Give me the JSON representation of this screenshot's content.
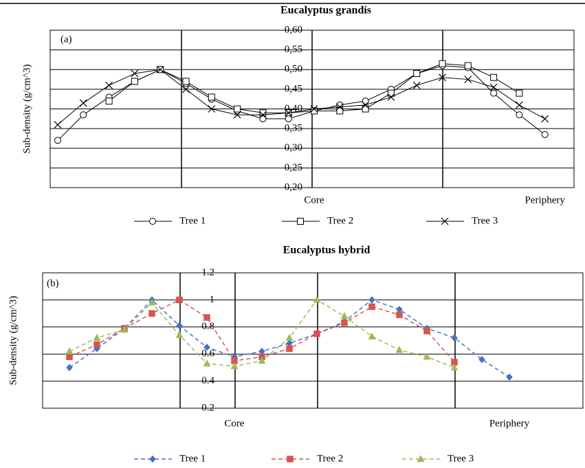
{
  "chart_data": [
    {
      "type": "line",
      "title": "Eucalyptus grandis",
      "annotation": "(a)",
      "y_label": "Sub-density (g/cm^3)",
      "categories": [
        null,
        null,
        null,
        null,
        null,
        null,
        null,
        null,
        null,
        null,
        "Core",
        null,
        null,
        null,
        null,
        null,
        null,
        null,
        null,
        "Periphery"
      ],
      "ylim": [
        0.2,
        0.6
      ],
      "yticks": [
        {
          "value": 0.2,
          "label": "0,20"
        },
        {
          "value": 0.25,
          "label": "0,25"
        },
        {
          "value": 0.3,
          "label": "0,30"
        },
        {
          "value": 0.35,
          "label": "0,35"
        },
        {
          "value": 0.4,
          "label": "0,40"
        },
        {
          "value": 0.45,
          "label": "0,45"
        },
        {
          "value": 0.5,
          "label": "0,50"
        },
        {
          "value": 0.55,
          "label": "0,55"
        },
        {
          "value": 0.6,
          "label": "0,60"
        }
      ],
      "grid": true,
      "linestyle": "solid",
      "series": [
        {
          "name": "Tree 1",
          "color": "#000000",
          "marker": "circle",
          "values": [
            0.32,
            0.385,
            0.43,
            0.47,
            0.5,
            0.465,
            0.425,
            0.395,
            0.375,
            0.375,
            0.395,
            0.41,
            0.42,
            0.45,
            0.49,
            0.51,
            0.505,
            0.44,
            0.385,
            0.335
          ]
        },
        {
          "name": "Tree 2",
          "color": "#000000",
          "marker": "square",
          "values": [
            null,
            null,
            0.42,
            0.47,
            0.5,
            0.47,
            0.43,
            0.4,
            0.39,
            0.39,
            0.395,
            0.395,
            0.4,
            0.44,
            0.49,
            0.515,
            0.51,
            0.48,
            0.44,
            null
          ]
        },
        {
          "name": "Tree 3",
          "color": "#000000",
          "marker": "x",
          "values": [
            0.36,
            0.415,
            0.46,
            0.49,
            0.5,
            0.45,
            0.4,
            0.385,
            0.385,
            0.39,
            0.4,
            0.405,
            0.41,
            0.43,
            0.46,
            0.48,
            0.475,
            0.455,
            0.41,
            0.375
          ]
        }
      ]
    },
    {
      "type": "line",
      "title": "Eucalyptus hybrid",
      "annotation": "(b)",
      "y_label": "Sub-density (g/cm^3)",
      "categories": [
        null,
        null,
        null,
        null,
        null,
        null,
        "Core",
        null,
        null,
        null,
        null,
        null,
        null,
        null,
        null,
        null,
        "Periphery"
      ],
      "ylim": [
        0.2,
        1.2
      ],
      "yticks": [
        0.2,
        0.4,
        0.6,
        0.8,
        1,
        1.2
      ],
      "grid": true,
      "linestyle": "dashed",
      "series": [
        {
          "name": "Tree 1",
          "color": "#4472c4",
          "marker": "diamond",
          "values": [
            0.5,
            0.64,
            0.79,
            1.0,
            0.81,
            0.65,
            0.58,
            0.62,
            0.68,
            0.75,
            0.84,
            1.0,
            0.93,
            0.79,
            0.72,
            0.56,
            0.43
          ]
        },
        {
          "name": "Tree 2",
          "color": "#d9534f",
          "marker": "square",
          "values": [
            0.58,
            0.67,
            0.79,
            0.9,
            1.0,
            0.87,
            0.55,
            0.58,
            0.64,
            0.75,
            0.83,
            0.95,
            0.89,
            0.77,
            0.54,
            null,
            null
          ]
        },
        {
          "name": "Tree 3",
          "color": "#9bbb59",
          "marker": "triangle",
          "values": [
            0.62,
            0.72,
            0.78,
            0.98,
            0.74,
            0.53,
            0.51,
            0.55,
            0.72,
            1.0,
            0.88,
            0.73,
            0.63,
            0.58,
            0.5,
            null,
            null
          ]
        }
      ]
    }
  ]
}
